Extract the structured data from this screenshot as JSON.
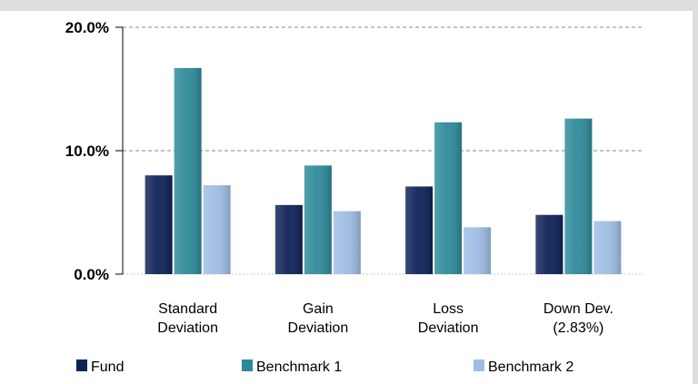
{
  "chart_data": {
    "type": "bar",
    "categories": [
      [
        "Standard",
        "Deviation"
      ],
      [
        "Gain",
        "Deviation"
      ],
      [
        "Loss",
        "Deviation"
      ],
      [
        "Down Dev.",
        "(2.83%)"
      ]
    ],
    "series": [
      {
        "name": "Fund",
        "color": "#0f2258",
        "values": [
          8.0,
          5.6,
          7.1,
          4.8
        ]
      },
      {
        "name": "Benchmark 1",
        "color": "#2e8a9a",
        "values": [
          16.7,
          8.8,
          12.3,
          12.6
        ]
      },
      {
        "name": "Benchmark 2",
        "color": "#9fbde3",
        "values": [
          7.2,
          5.1,
          3.8,
          4.3
        ]
      }
    ],
    "yticks": [
      "0.0%",
      "10.0%",
      "20.0%"
    ],
    "ylim": [
      0,
      20
    ],
    "grid": true,
    "legend_position": "bottom"
  }
}
